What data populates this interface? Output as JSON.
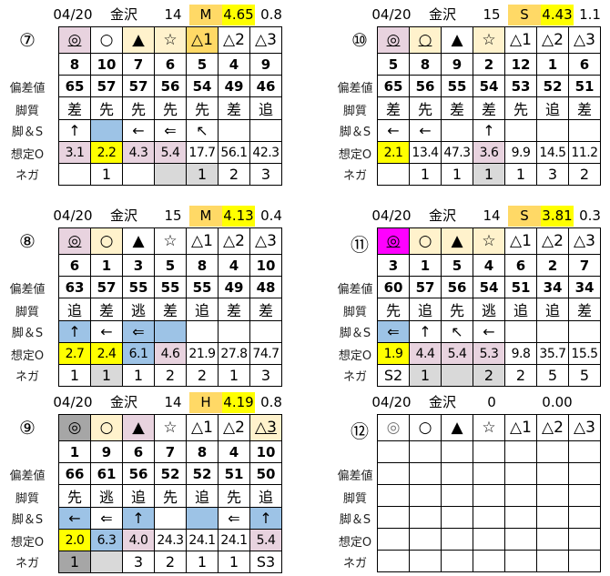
{
  "palette": {
    "p": "#e8d3df",
    "y": "#ffff00",
    "o": "#fff2cc",
    "O": "#ffd966",
    "b": "#9dc3e6",
    "g": "#d9d9d9",
    "d": "#a6a6a6",
    "m": "#ff00ff"
  },
  "row_labels": [
    "",
    "偏差値",
    "脚質",
    "脚＆S",
    "想定O",
    "ネガ"
  ],
  "panels": [
    {
      "race": "⑦",
      "date": "04/20",
      "venue": "金沢",
      "count": "14",
      "grade": "M",
      "grade_value": "4.65",
      "extra": "0.8",
      "marks": [
        {
          "t": "◎",
          "bg": "p",
          "u": 1
        },
        {
          "t": "○"
        },
        {
          "t": "▲",
          "bg": "o",
          "u": 1
        },
        {
          "t": "☆",
          "bg": "o"
        },
        {
          "t": "△1",
          "bg": "O"
        },
        {
          "t": "△2"
        },
        {
          "t": "△3"
        }
      ],
      "horses": [
        "8",
        "10",
        "7",
        "6",
        "5",
        "4",
        "9"
      ],
      "deviation": [
        "65",
        "57",
        "57",
        "56",
        "54",
        "49",
        "46"
      ],
      "style": [
        "差",
        "先",
        "先",
        "先",
        "先",
        "差",
        "追"
      ],
      "arrows": [
        {
          "t": "↑"
        },
        {
          "t": "",
          "bg": "b"
        },
        {
          "t": "←"
        },
        {
          "t": "⇐"
        },
        {
          "t": "↖"
        },
        {
          "t": ""
        },
        {
          "t": ""
        }
      ],
      "odds": [
        {
          "t": "3.1",
          "bg": "p"
        },
        {
          "t": "2.2",
          "bg": "y"
        },
        {
          "t": "4.3",
          "bg": "p"
        },
        {
          "t": "5.4",
          "bg": "p"
        },
        {
          "t": "17.7"
        },
        {
          "t": "56.1"
        },
        {
          "t": "42.3"
        }
      ],
      "nega": [
        {
          "t": ""
        },
        {
          "t": "1"
        },
        {
          "t": ""
        },
        {
          "t": "",
          "bg": "g"
        },
        {
          "t": "1",
          "bg": "g"
        },
        {
          "t": "2"
        },
        {
          "t": "3"
        }
      ]
    },
    {
      "race": "⑩",
      "date": "04/20",
      "venue": "金沢",
      "count": "15",
      "grade": "S",
      "grade_value": "4.43",
      "extra": "1.1",
      "marks": [
        {
          "t": "◎",
          "bg": "p",
          "u": 1
        },
        {
          "t": "○",
          "bg": "o",
          "u": 1
        },
        {
          "t": "▲"
        },
        {
          "t": "☆",
          "bg": "o"
        },
        {
          "t": "△1"
        },
        {
          "t": "△2"
        },
        {
          "t": "△3"
        }
      ],
      "horses": [
        "5",
        "8",
        "9",
        "2",
        "12",
        "1",
        "6"
      ],
      "deviation": [
        "65",
        "56",
        "55",
        "54",
        "53",
        "52",
        "51"
      ],
      "style": [
        "差",
        "先",
        "差",
        "差",
        "先",
        "追",
        "差"
      ],
      "arrows": [
        {
          "t": "←"
        },
        {
          "t": "←"
        },
        {
          "t": ""
        },
        {
          "t": "↑"
        },
        {
          "t": ""
        },
        {
          "t": ""
        },
        {
          "t": ""
        }
      ],
      "odds": [
        {
          "t": "2.1",
          "bg": "y"
        },
        {
          "t": "13.4"
        },
        {
          "t": "47.3"
        },
        {
          "t": "3.6",
          "bg": "p"
        },
        {
          "t": "9.9"
        },
        {
          "t": "14.5"
        },
        {
          "t": "11.2"
        }
      ],
      "nega": [
        {
          "t": ""
        },
        {
          "t": "1"
        },
        {
          "t": "1"
        },
        {
          "t": "1",
          "bg": "g"
        },
        {
          "t": "1"
        },
        {
          "t": "3"
        },
        {
          "t": "2"
        }
      ]
    },
    {
      "race": "⑧",
      "date": "04/20",
      "venue": "金沢",
      "count": "15",
      "grade": "M",
      "grade_value": "4.13",
      "extra": "0.4",
      "marks": [
        {
          "t": "◎",
          "bg": "p",
          "u": 1
        },
        {
          "t": "○",
          "bg": "o"
        },
        {
          "t": "▲"
        },
        {
          "t": "☆"
        },
        {
          "t": "△1"
        },
        {
          "t": "△2"
        },
        {
          "t": "△3"
        }
      ],
      "horses": [
        "6",
        "1",
        "3",
        "5",
        "8",
        "4",
        "10"
      ],
      "deviation": [
        "63",
        "57",
        "55",
        "55",
        "55",
        "49",
        "48"
      ],
      "style": [
        "追",
        "差",
        "逃",
        "差",
        "追",
        "差",
        "差"
      ],
      "arrows": [
        {
          "t": "↑",
          "bg": "b"
        },
        {
          "t": "←"
        },
        {
          "t": "⇐",
          "bg": "b"
        },
        {
          "t": "",
          "bg": "b"
        },
        {
          "t": ""
        },
        {
          "t": ""
        },
        {
          "t": ""
        }
      ],
      "odds": [
        {
          "t": "2.7",
          "bg": "y"
        },
        {
          "t": "2.4",
          "bg": "y"
        },
        {
          "t": "6.1",
          "bg": "b"
        },
        {
          "t": "4.6",
          "bg": "p"
        },
        {
          "t": "21.9"
        },
        {
          "t": "27.8"
        },
        {
          "t": "74.7"
        }
      ],
      "nega": [
        {
          "t": "1"
        },
        {
          "t": "1",
          "bg": "g"
        },
        {
          "t": "1"
        },
        {
          "t": "2"
        },
        {
          "t": "2"
        },
        {
          "t": "1"
        },
        {
          "t": "3"
        }
      ]
    },
    {
      "race": "⑪",
      "date": "04/20",
      "venue": "金沢",
      "count": "14",
      "grade": "S",
      "grade_value": "3.81",
      "extra": "0.3",
      "marks": [
        {
          "t": "◎",
          "bg": "m",
          "u": 1
        },
        {
          "t": "○",
          "bg": "o"
        },
        {
          "t": "▲",
          "bg": "o"
        },
        {
          "t": "☆",
          "bg": "o"
        },
        {
          "t": "△1"
        },
        {
          "t": "△2"
        },
        {
          "t": "△3"
        }
      ],
      "horses": [
        "3",
        "1",
        "5",
        "4",
        "6",
        "2",
        "7"
      ],
      "deviation": [
        "60",
        "57",
        "56",
        "54",
        "51",
        "34",
        "34"
      ],
      "style": [
        "先",
        "追",
        "先",
        "逃",
        "追",
        "追",
        "差"
      ],
      "arrows": [
        {
          "t": "⇐",
          "bg": "b"
        },
        {
          "t": "↑"
        },
        {
          "t": "↖"
        },
        {
          "t": "←"
        },
        {
          "t": ""
        },
        {
          "t": ""
        },
        {
          "t": ""
        }
      ],
      "odds": [
        {
          "t": "1.9",
          "bg": "y"
        },
        {
          "t": "4.4",
          "bg": "p"
        },
        {
          "t": "5.4",
          "bg": "p"
        },
        {
          "t": "5.3",
          "bg": "p"
        },
        {
          "t": "9.8"
        },
        {
          "t": "35.7"
        },
        {
          "t": "15.5"
        }
      ],
      "nega": [
        {
          "t": "S2"
        },
        {
          "t": "1",
          "bg": "g"
        },
        {
          "t": "",
          "bg": "g"
        },
        {
          "t": "2",
          "bg": "g"
        },
        {
          "t": "2"
        },
        {
          "t": "5"
        },
        {
          "t": "5"
        }
      ]
    },
    {
      "race": "⑨",
      "date": "04/20",
      "venue": "金沢",
      "count": "14",
      "grade": "H",
      "grade_value": "4.19",
      "extra": "0.8",
      "marks": [
        {
          "t": "◎",
          "bg": "d"
        },
        {
          "t": "○",
          "bg": "o"
        },
        {
          "t": "▲",
          "bg": "p",
          "u": 1
        },
        {
          "t": "☆"
        },
        {
          "t": "△1"
        },
        {
          "t": "△2"
        },
        {
          "t": "△3",
          "bg": "o",
          "u": 1
        }
      ],
      "horses": [
        "1",
        "9",
        "6",
        "7",
        "8",
        "4",
        "10"
      ],
      "deviation": [
        "66",
        "61",
        "56",
        "52",
        "52",
        "51",
        "50"
      ],
      "style": [
        "先",
        "逃",
        "追",
        "先",
        "追",
        "先",
        "追"
      ],
      "arrows": [
        {
          "t": "←",
          "bg": "b"
        },
        {
          "t": "⇐"
        },
        {
          "t": "↑",
          "bg": "b"
        },
        {
          "t": ""
        },
        {
          "t": "",
          "bg": "b"
        },
        {
          "t": "⇐"
        },
        {
          "t": "↑",
          "bg": "b"
        }
      ],
      "odds": [
        {
          "t": "2.0",
          "bg": "y"
        },
        {
          "t": "6.3",
          "bg": "b"
        },
        {
          "t": "4.0",
          "bg": "p"
        },
        {
          "t": "24.3"
        },
        {
          "t": "24.1"
        },
        {
          "t": "24.1"
        },
        {
          "t": "5.4",
          "bg": "p"
        }
      ],
      "nega": [
        {
          "t": "1",
          "bg": "d"
        },
        {
          "t": "",
          "bg": "g"
        },
        {
          "t": "3"
        },
        {
          "t": "2"
        },
        {
          "t": "1"
        },
        {
          "t": "1"
        },
        {
          "t": "S3"
        }
      ]
    },
    {
      "race": "⑫",
      "date": "04/20",
      "venue": "金沢",
      "count": "0",
      "grade": "",
      "grade_value": "0.00",
      "extra": "",
      "marks": [
        {
          "t": "◎"
        },
        {
          "t": "○"
        },
        {
          "t": "▲"
        },
        {
          "t": "☆"
        },
        {
          "t": "△1"
        },
        {
          "t": "△2"
        },
        {
          "t": "△3"
        }
      ],
      "horses": [
        "",
        "",
        "",
        "",
        "",
        "",
        ""
      ],
      "deviation": [
        "",
        "",
        "",
        "",
        "",
        "",
        ""
      ],
      "style": [
        "",
        "",
        "",
        "",
        "",
        "",
        ""
      ],
      "arrows": [
        {
          "t": ""
        },
        {
          "t": ""
        },
        {
          "t": ""
        },
        {
          "t": ""
        },
        {
          "t": ""
        },
        {
          "t": ""
        },
        {
          "t": ""
        }
      ],
      "odds": [
        {
          "t": ""
        },
        {
          "t": ""
        },
        {
          "t": ""
        },
        {
          "t": ""
        },
        {
          "t": ""
        },
        {
          "t": ""
        },
        {
          "t": ""
        }
      ],
      "nega": [
        {
          "t": ""
        },
        {
          "t": ""
        },
        {
          "t": ""
        },
        {
          "t": ""
        },
        {
          "t": ""
        },
        {
          "t": ""
        },
        {
          "t": ""
        }
      ]
    }
  ]
}
